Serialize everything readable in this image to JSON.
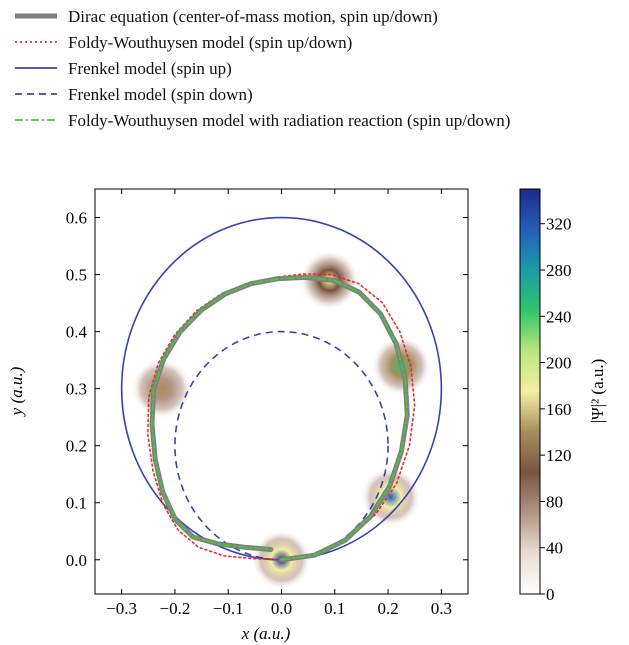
{
  "chart_data": {
    "type": "line",
    "xlabel": "x (a.u.)",
    "ylabel": "y (a.u.)",
    "xlim": [
      -0.35,
      0.35
    ],
    "ylim": [
      -0.06,
      0.65
    ],
    "xticks": [
      -0.3,
      -0.2,
      -0.1,
      0.0,
      0.1,
      0.2,
      0.3
    ],
    "xtick_labels": [
      "−0.3",
      "−0.2",
      "−0.1",
      "0.0",
      "0.1",
      "0.2",
      "0.3"
    ],
    "yticks": [
      0.0,
      0.1,
      0.2,
      0.3,
      0.4,
      0.5,
      0.6
    ],
    "ytick_labels": [
      "0.0",
      "0.1",
      "0.2",
      "0.3",
      "0.4",
      "0.5",
      "0.6"
    ],
    "legend_position": "top",
    "series": [
      {
        "name": "Dirac equation (center-of-mass motion, spin up/down)",
        "color": "#7f7f7f",
        "style": "solid-thick",
        "points": [
          [
            0.0,
            0.0
          ],
          [
            0.062,
            0.008
          ],
          [
            0.119,
            0.034
          ],
          [
            0.167,
            0.076
          ],
          [
            0.203,
            0.129
          ],
          [
            0.225,
            0.19
          ],
          [
            0.236,
            0.254
          ],
          [
            0.232,
            0.318
          ],
          [
            0.215,
            0.379
          ],
          [
            0.186,
            0.431
          ],
          [
            0.146,
            0.469
          ],
          [
            0.098,
            0.49
          ],
          [
            0.046,
            0.495
          ],
          [
            -0.006,
            0.493
          ],
          [
            -0.057,
            0.484
          ],
          [
            -0.106,
            0.466
          ],
          [
            -0.15,
            0.438
          ],
          [
            -0.19,
            0.4
          ],
          [
            -0.221,
            0.352
          ],
          [
            -0.24,
            0.299
          ],
          [
            -0.243,
            0.238
          ],
          [
            -0.237,
            0.176
          ],
          [
            -0.223,
            0.119
          ],
          [
            -0.199,
            0.07
          ],
          [
            -0.166,
            0.04
          ],
          [
            -0.12,
            0.028
          ],
          [
            -0.07,
            0.022
          ],
          [
            -0.02,
            0.018
          ]
        ]
      },
      {
        "name": "Foldy-Wouthuysen model (spin up/down)",
        "color": "#ee2a2a",
        "style": "dotted",
        "points": [
          [
            0.0,
            0.0
          ],
          [
            0.067,
            0.009
          ],
          [
            0.125,
            0.036
          ],
          [
            0.177,
            0.08
          ],
          [
            0.216,
            0.134
          ],
          [
            0.24,
            0.2
          ],
          [
            0.25,
            0.27
          ],
          [
            0.243,
            0.338
          ],
          [
            0.222,
            0.4
          ],
          [
            0.189,
            0.451
          ],
          [
            0.145,
            0.484
          ],
          [
            0.094,
            0.5
          ],
          [
            0.04,
            0.501
          ],
          [
            -0.012,
            0.495
          ],
          [
            -0.064,
            0.485
          ],
          [
            -0.114,
            0.466
          ],
          [
            -0.16,
            0.436
          ],
          [
            -0.2,
            0.395
          ],
          [
            -0.231,
            0.345
          ],
          [
            -0.249,
            0.285
          ],
          [
            -0.251,
            0.22
          ],
          [
            -0.241,
            0.155
          ],
          [
            -0.222,
            0.097
          ],
          [
            -0.194,
            0.052
          ],
          [
            -0.156,
            0.022
          ],
          [
            -0.108,
            0.007
          ],
          [
            -0.055,
            0.002
          ],
          [
            0.0,
            0.0
          ]
        ]
      },
      {
        "name": "Frenkel model (spin up)",
        "color": "#3a40b4",
        "style": "solid",
        "circle": {
          "cx": 0.0,
          "cy": 0.3,
          "r": 0.3
        }
      },
      {
        "name": "Frenkel model (spin down)",
        "color": "#3a40b4",
        "style": "dashed",
        "circle": {
          "cx": 0.0,
          "cy": 0.2,
          "r": 0.2
        }
      },
      {
        "name": "Foldy-Wouthuysen model with radiation reaction (spin up/down)",
        "color": "#4dbf43",
        "style": "dash-dot",
        "points": [
          [
            0.0,
            0.0
          ],
          [
            0.062,
            0.008
          ],
          [
            0.119,
            0.034
          ],
          [
            0.167,
            0.076
          ],
          [
            0.203,
            0.129
          ],
          [
            0.225,
            0.19
          ],
          [
            0.236,
            0.254
          ],
          [
            0.232,
            0.318
          ],
          [
            0.215,
            0.379
          ],
          [
            0.186,
            0.431
          ],
          [
            0.146,
            0.469
          ],
          [
            0.098,
            0.49
          ],
          [
            0.046,
            0.495
          ],
          [
            -0.006,
            0.493
          ],
          [
            -0.057,
            0.484
          ],
          [
            -0.106,
            0.466
          ],
          [
            -0.15,
            0.438
          ],
          [
            -0.19,
            0.4
          ],
          [
            -0.221,
            0.352
          ],
          [
            -0.24,
            0.299
          ],
          [
            -0.243,
            0.238
          ],
          [
            -0.237,
            0.176
          ],
          [
            -0.223,
            0.119
          ],
          [
            -0.199,
            0.07
          ],
          [
            -0.166,
            0.04
          ],
          [
            -0.12,
            0.028
          ],
          [
            -0.07,
            0.022
          ],
          [
            -0.02,
            0.018
          ]
        ]
      }
    ],
    "density_blobs": [
      {
        "x": 0.0,
        "y": 0.0,
        "peak": 340
      },
      {
        "x": 0.205,
        "y": 0.11,
        "peak": 330
      },
      {
        "x": 0.225,
        "y": 0.34,
        "peak": 250
      },
      {
        "x": 0.09,
        "y": 0.49,
        "peak": 180
      },
      {
        "x": -0.225,
        "y": 0.3,
        "peak": 140
      }
    ],
    "colorbar": {
      "label": "|Ψ|² (a.u.)",
      "min": 0,
      "max": 350,
      "ticks": [
        0,
        40,
        80,
        120,
        160,
        200,
        240,
        280,
        320
      ],
      "colors": [
        "#ffffff",
        "#e7ddd6",
        "#b39485",
        "#7a5441",
        "#a88d5b",
        "#f2efa3",
        "#b9e67c",
        "#30c56b",
        "#1b9ba7",
        "#255ebd",
        "#1c2a8a"
      ]
    }
  }
}
